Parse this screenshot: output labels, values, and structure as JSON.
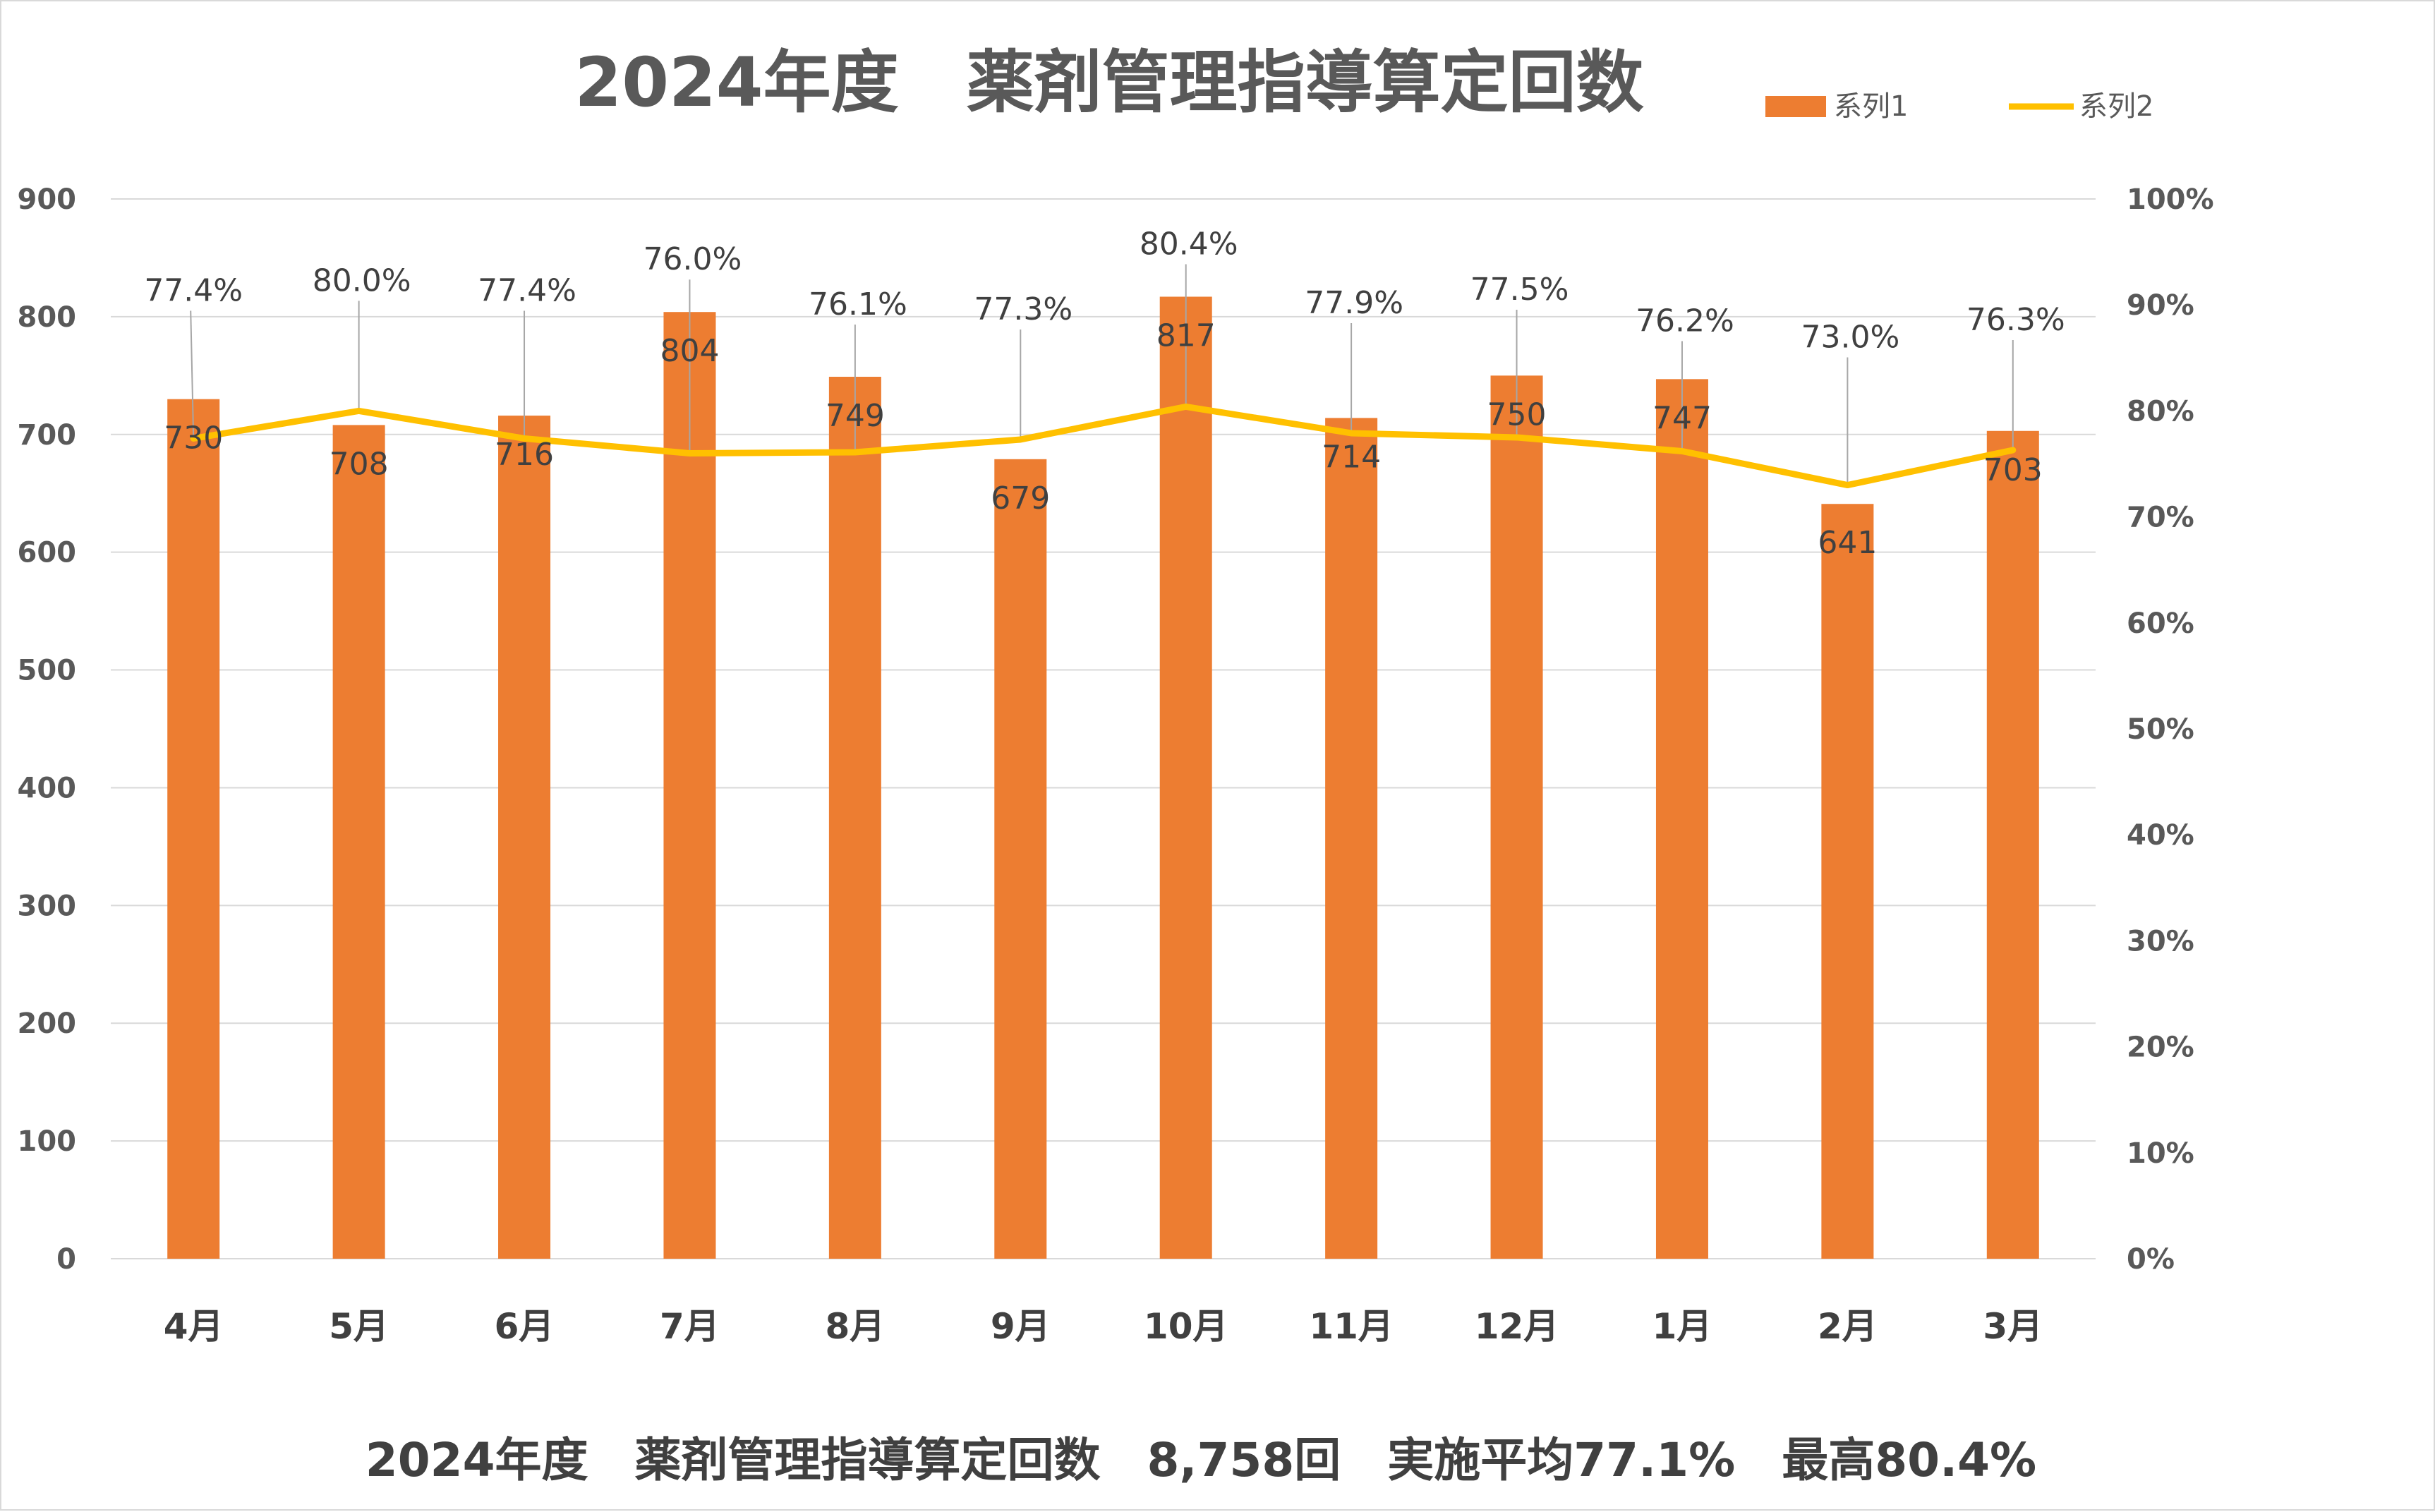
{
  "chart_data": {
    "type": "bar",
    "title": "2024年度　薬剤管理指導算定回数",
    "categories": [
      "4月",
      "5月",
      "6月",
      "7月",
      "8月",
      "9月",
      "10月",
      "11月",
      "12月",
      "1月",
      "2月",
      "3月"
    ],
    "series": [
      {
        "name": "系列1",
        "type": "bar",
        "axis": "left",
        "color": "#ED7D31",
        "values": [
          730,
          708,
          716,
          804,
          749,
          679,
          817,
          714,
          750,
          747,
          641,
          703
        ],
        "labels": [
          "730",
          "708",
          "716",
          "804",
          "749",
          "679",
          "817",
          "714",
          "750",
          "747",
          "641",
          "703"
        ]
      },
      {
        "name": "系列2",
        "type": "line",
        "axis": "right",
        "color": "#FFC000",
        "values": [
          77.4,
          80.0,
          77.4,
          76.0,
          76.1,
          77.3,
          80.4,
          77.9,
          77.5,
          76.2,
          73.0,
          76.3
        ],
        "labels": [
          "77.4%",
          "80.0%",
          "77.4%",
          "76.0%",
          "76.1%",
          "77.3%",
          "80.4%",
          "77.9%",
          "77.5%",
          "76.2%",
          "73.0%",
          "76.3%"
        ]
      }
    ],
    "y_left": {
      "ylim": [
        0,
        900
      ],
      "ticks": [
        "0",
        "100",
        "200",
        "300",
        "400",
        "500",
        "600",
        "700",
        "800",
        "900"
      ]
    },
    "y_right": {
      "ylim": [
        0,
        100
      ],
      "ticks": [
        "0%",
        "10%",
        "20%",
        "30%",
        "40%",
        "50%",
        "60%",
        "70%",
        "80%",
        "90%",
        "100%"
      ]
    },
    "grid": true,
    "legend": "top-right",
    "footer": "2024年度　薬剤管理指導算定回数　8,758回　実施平均77.1%　最高80.4%"
  }
}
